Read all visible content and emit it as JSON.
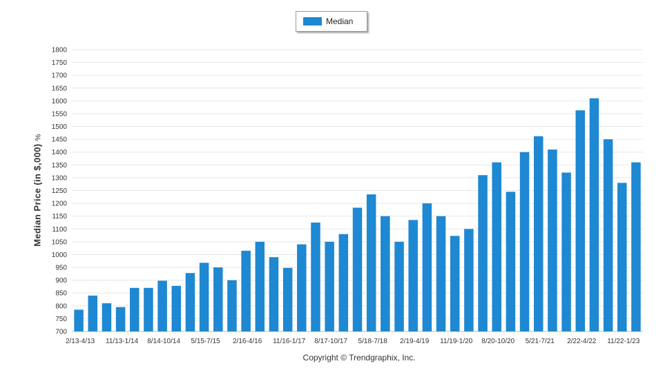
{
  "legend": {
    "label": "Median"
  },
  "footer": {
    "copyright": "Copyright © Trendgraphix, Inc."
  },
  "chart_data": {
    "type": "bar",
    "ylabel": "Median Price (in $,000)",
    "ylabel_unit": "%",
    "ylim": [
      700,
      1800
    ],
    "ytick_step": 50,
    "grid": true,
    "legend_position": "top-center",
    "series": [
      {
        "name": "Median",
        "color": "#1e88d2",
        "values": [
          785,
          840,
          810,
          795,
          870,
          870,
          898,
          878,
          928,
          968,
          950,
          900,
          1015,
          1050,
          990,
          948,
          1040,
          1125,
          1050,
          1080,
          1183,
          1235,
          1150,
          1050,
          1135,
          1200,
          1150,
          1073,
          1100,
          1310,
          1360,
          1245,
          1400,
          1462,
          1410,
          1320,
          1563,
          1610,
          1450,
          1280,
          1360
        ]
      }
    ],
    "categories": [
      "2/13-4/13",
      "",
      "",
      "11/13-1/14",
      "",
      "",
      "8/14-10/14",
      "",
      "",
      "5/15-7/15",
      "",
      "",
      "2/16-4/16",
      "",
      "",
      "11/16-1/17",
      "",
      "",
      "8/17-10/17",
      "",
      "",
      "5/18-7/18",
      "",
      "",
      "2/19-4/19",
      "",
      "",
      "11/19-1/20",
      "",
      "",
      "8/20-10/20",
      "",
      "",
      "5/21-7/21",
      "",
      "",
      "2/22-4/22",
      "",
      "",
      "11/22-1/23",
      ""
    ]
  }
}
